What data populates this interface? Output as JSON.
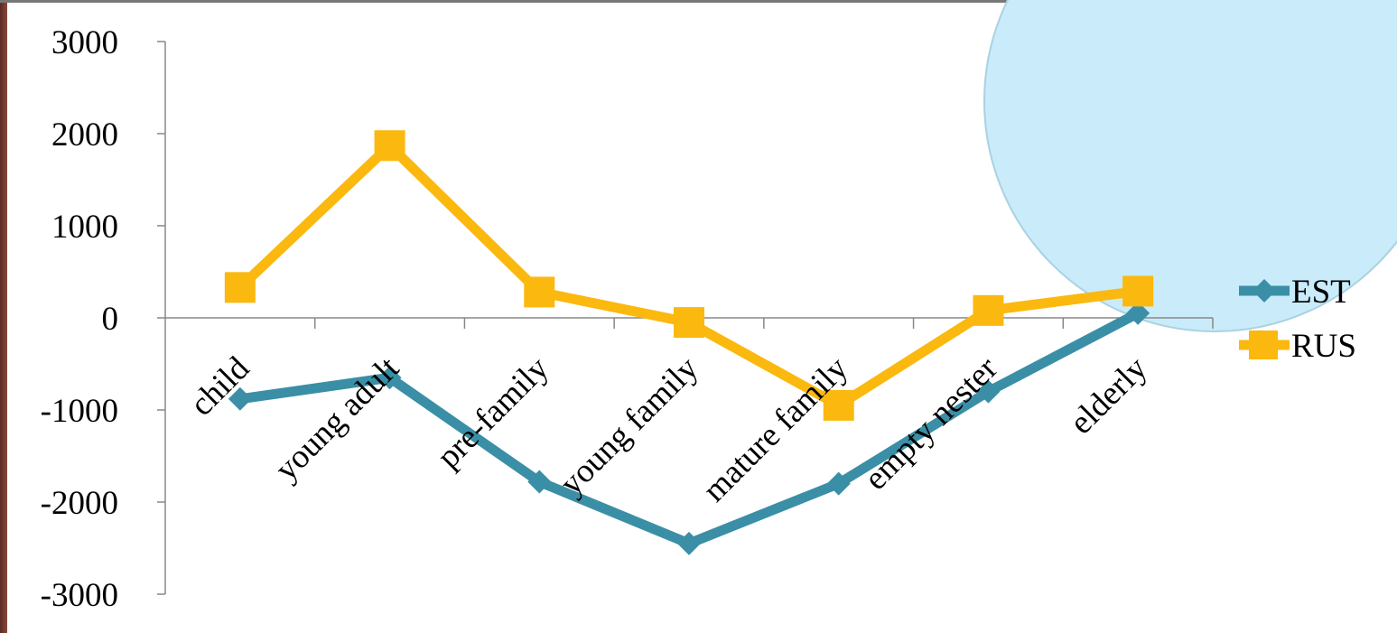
{
  "chart_data": {
    "type": "line",
    "title": "",
    "xlabel": "",
    "ylabel": "",
    "categories": [
      "child",
      "young adult",
      "pre-family",
      "young family",
      "mature family",
      "empty nester",
      "elderly"
    ],
    "ylim": [
      -3000,
      3000
    ],
    "yticks": [
      "3000",
      "2000",
      "1000",
      "0",
      "-1000",
      "-2000",
      "-3000"
    ],
    "grid": false,
    "legend_position": "right",
    "series": [
      {
        "name": "EST",
        "marker": "diamond",
        "color": "#3a8fa6",
        "values": [
          -880,
          -650,
          -1780,
          -2450,
          -1800,
          -800,
          50
        ]
      },
      {
        "name": "RUS",
        "marker": "square",
        "color": "#fbb80f",
        "values": [
          330,
          1870,
          280,
          -50,
          -950,
          80,
          290
        ]
      }
    ]
  },
  "decor": {
    "circle_fill": "#c9ebfa",
    "circle_stroke": "#a9d2e2"
  }
}
